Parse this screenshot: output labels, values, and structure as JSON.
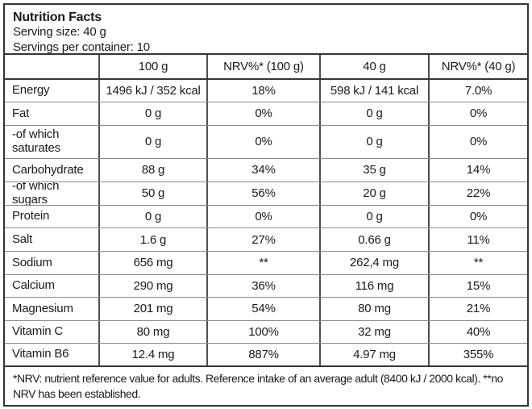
{
  "header": {
    "title": "Nutrition Facts",
    "serving_size": "Serving size: 40 g",
    "servings_per_container": "Servings per container: 10"
  },
  "table": {
    "col_headers": [
      "",
      "100 g",
      "NRV%* (100 g)",
      "40 g",
      "NRV%* (40 g)"
    ],
    "rows": [
      [
        "Energy",
        "1496 kJ / 352 kcal",
        "18%",
        "598 kJ / 141 kcal",
        "7.0%"
      ],
      [
        "Fat",
        "0 g",
        "0%",
        "0 g",
        "0%"
      ],
      [
        "-of which saturates",
        "0 g",
        "0%",
        "0 g",
        "0%"
      ],
      [
        "Carbohydrate",
        "88 g",
        "34%",
        "35 g",
        "14%"
      ],
      [
        "-of which sugars",
        "50 g",
        "56%",
        "20 g",
        "22%"
      ],
      [
        "Protein",
        "0 g",
        "0%",
        "0 g",
        "0%"
      ],
      [
        "Salt",
        "1.6 g",
        "27%",
        "0.66 g",
        "11%"
      ],
      [
        "Sodium",
        "656 mg",
        "**",
        "262,4 mg",
        "**"
      ],
      [
        "Calcium",
        "290 mg",
        "36%",
        "116 mg",
        "15%"
      ],
      [
        "Magnesium",
        "201 mg",
        "54%",
        "80 mg",
        "21%"
      ],
      [
        "Vitamin C",
        "80 mg",
        "100%",
        "32 mg",
        "40%"
      ],
      [
        "Vitamin B6",
        "12.4 mg",
        "887%",
        "4.97 mg",
        "355%"
      ]
    ]
  },
  "footnote": "*NRV: nutrient reference value for adults. Reference intake of an average adult (8400 kJ / 2000 kcal). **no NRV has been established.",
  "colors": {
    "border_strong": "#353535",
    "border_thin": "#8a8a8a",
    "border_vertical": "#4f4f4f",
    "text": "#1b1b1b",
    "background": "#ffffff"
  }
}
